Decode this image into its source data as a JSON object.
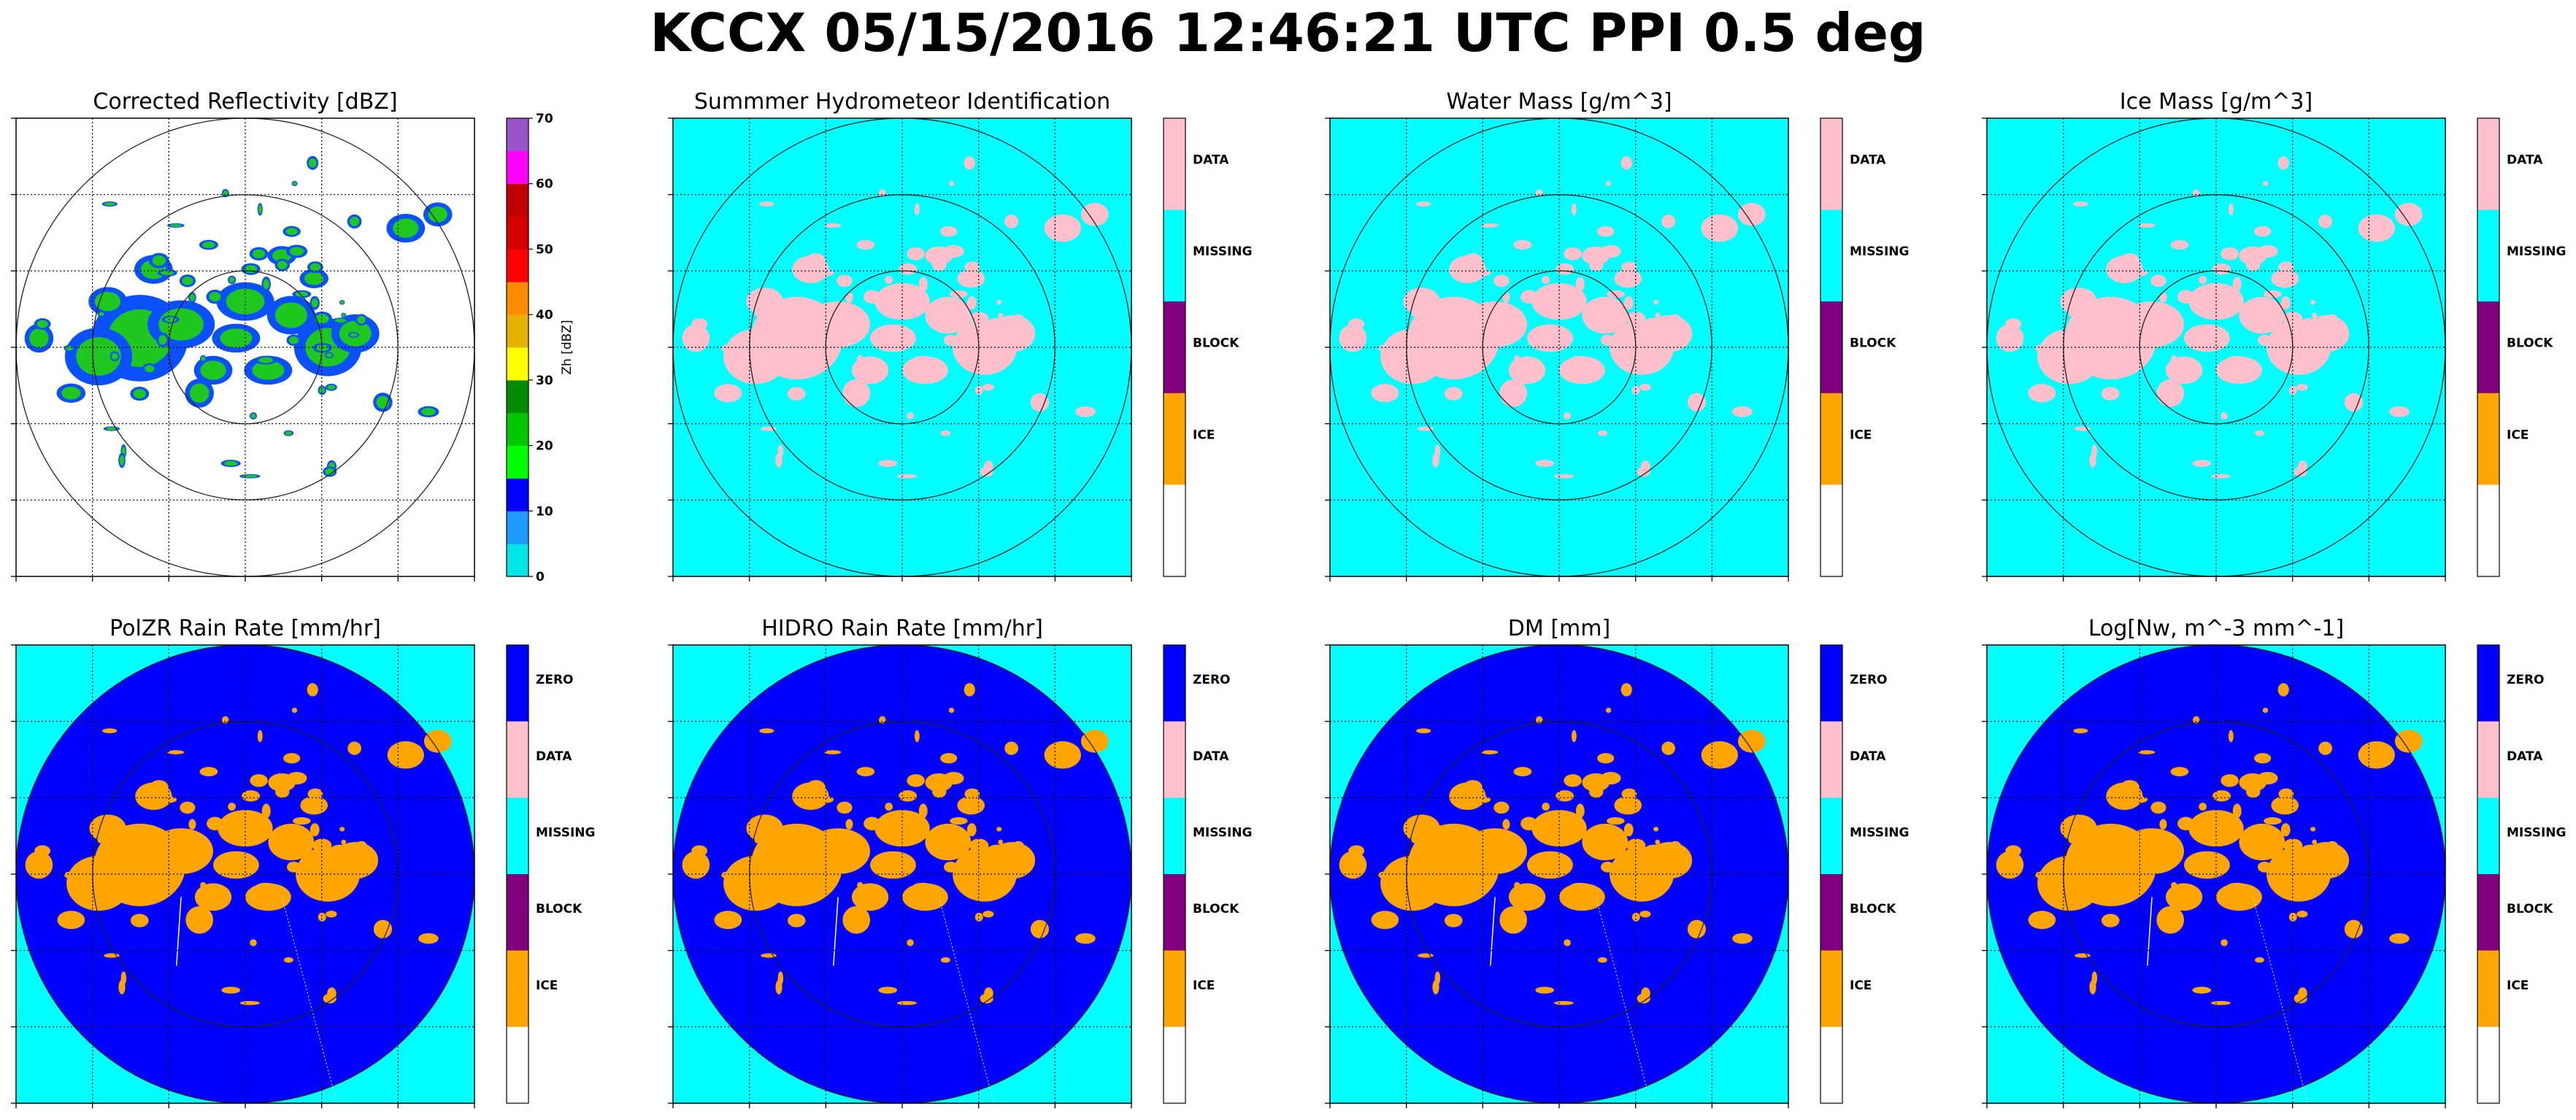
{
  "figure": {
    "suptitle": "KCCX 05/15/2016 12:46:21 UTC PPI 0.5 deg"
  },
  "colors": {
    "background_cyan": "#00ffff",
    "rain_blue": "#0000ff",
    "echo_orange": "#ffa500",
    "echo_pink": "#ffc0cb"
  },
  "chart_data": [
    {
      "type": "heatmap",
      "title": "Corrected Reflectivity [dBZ]",
      "colorbar_type": "continuous",
      "colorbar_label": "Zh [dBZ]",
      "colorbar_ticks": [
        "0",
        "10",
        "20",
        "30",
        "40",
        "50",
        "60",
        "70"
      ],
      "colorbar_range": [
        0,
        70
      ],
      "colorbar_colors": [
        "#00e6e6",
        "#1e9bff",
        "#0000ff",
        "#00ff00",
        "#00c800",
        "#008c00",
        "#ffff00",
        "#e6b400",
        "#ff8c00",
        "#ff0000",
        "#d60000",
        "#c00000",
        "#ff00ff",
        "#9955c8"
      ],
      "range_rings": 3,
      "background": "white"
    },
    {
      "type": "heatmap",
      "title": "Summmer Hydrometeor Identification",
      "colorbar_type": "categorical",
      "categories": [
        "DATA",
        "MISSING",
        "BLOCK",
        "ICE"
      ],
      "category_colors": [
        "#ffc0cb",
        "#00ffff",
        "#800080",
        "#ffa500",
        "#ffffff"
      ],
      "range_rings": 3,
      "background": "cyan"
    },
    {
      "type": "heatmap",
      "title": "Water Mass [g/m^3]",
      "colorbar_type": "categorical",
      "categories": [
        "DATA",
        "MISSING",
        "BLOCK",
        "ICE"
      ],
      "category_colors": [
        "#ffc0cb",
        "#00ffff",
        "#800080",
        "#ffa500",
        "#ffffff"
      ],
      "range_rings": 3,
      "background": "cyan"
    },
    {
      "type": "heatmap",
      "title": "Ice Mass [g/m^3]",
      "colorbar_type": "categorical",
      "categories": [
        "DATA",
        "MISSING",
        "BLOCK",
        "ICE"
      ],
      "category_colors": [
        "#ffc0cb",
        "#00ffff",
        "#800080",
        "#ffa500",
        "#ffffff"
      ],
      "range_rings": 3,
      "background": "cyan"
    },
    {
      "type": "heatmap",
      "title": "PolZR Rain Rate [mm/hr]",
      "colorbar_type": "categorical",
      "categories": [
        "ZERO",
        "DATA",
        "MISSING",
        "BLOCK",
        "ICE"
      ],
      "category_colors": [
        "#0000ff",
        "#ffc0cb",
        "#00ffff",
        "#800080",
        "#ffa500",
        "#ffffff"
      ],
      "range_rings": 2,
      "background": "cyan"
    },
    {
      "type": "heatmap",
      "title": "HIDRO Rain Rate [mm/hr]",
      "colorbar_type": "categorical",
      "categories": [
        "ZERO",
        "DATA",
        "MISSING",
        "BLOCK",
        "ICE"
      ],
      "category_colors": [
        "#0000ff",
        "#ffc0cb",
        "#00ffff",
        "#800080",
        "#ffa500",
        "#ffffff"
      ],
      "range_rings": 2,
      "background": "cyan"
    },
    {
      "type": "heatmap",
      "title": "DM [mm]",
      "colorbar_type": "categorical",
      "categories": [
        "ZERO",
        "DATA",
        "MISSING",
        "BLOCK",
        "ICE"
      ],
      "category_colors": [
        "#0000ff",
        "#ffc0cb",
        "#00ffff",
        "#800080",
        "#ffa500",
        "#ffffff"
      ],
      "range_rings": 2,
      "background": "cyan"
    },
    {
      "type": "heatmap",
      "title": "Log[Nw, m^-3 mm^-1]",
      "colorbar_type": "categorical",
      "categories": [
        "ZERO",
        "DATA",
        "MISSING",
        "BLOCK",
        "ICE"
      ],
      "category_colors": [
        "#0000ff",
        "#ffc0cb",
        "#00ffff",
        "#800080",
        "#ffa500",
        "#ffffff"
      ],
      "range_rings": 2,
      "background": "cyan"
    }
  ]
}
